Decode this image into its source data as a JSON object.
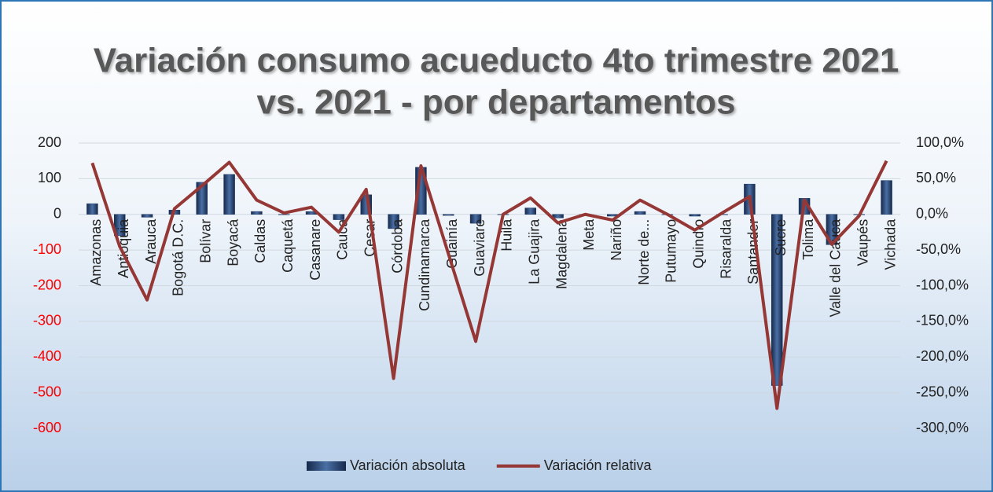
{
  "chart_data": {
    "type": "bar_line",
    "title": [
      "Variación consumo acueducto 4to trimestre 2021",
      "vs. 2021 - por departamentos"
    ],
    "categories": [
      "Amazonas",
      "Antioquia",
      "Arauca",
      "Bogotá D.C.",
      "Bolívar",
      "Boyacá",
      "Caldas",
      "Caquetá",
      "Casanare",
      "Cauca",
      "Cesar",
      "Córdoba",
      "Cundinamarca",
      "Guainía",
      "Guaviare",
      "Huila",
      "La Guajira",
      "Magdalena",
      "Meta",
      "Nariño",
      "Norte de...",
      "Putumayo",
      "Quindío",
      "Risaralda",
      "Santander",
      "Sucre",
      "Tolima",
      "Valle del Cauca",
      "Vaupés",
      "Vichada"
    ],
    "series": [
      {
        "name": "Variación absoluta",
        "type": "bar",
        "color": "#1f3864",
        "values": [
          30,
          -60,
          -8,
          12,
          90,
          112,
          8,
          0,
          8,
          -15,
          55,
          -40,
          132,
          -3,
          -25,
          0,
          18,
          -10,
          0,
          -5,
          8,
          0,
          -5,
          0,
          85,
          -480,
          45,
          -85,
          0,
          95
        ]
      },
      {
        "name": "Variación relativa",
        "type": "line",
        "axis": "y2",
        "color": "#953735",
        "values": [
          72,
          -45,
          -120,
          8,
          40,
          73,
          20,
          2,
          10,
          -25,
          35,
          -230,
          68,
          -55,
          -178,
          0,
          23,
          -12,
          0,
          -8,
          20,
          0,
          -22,
          2,
          25,
          -272,
          20,
          -42,
          -2,
          75
        ]
      }
    ],
    "ylim": [
      -600,
      200
    ],
    "yticks": [
      -600,
      -500,
      -400,
      -300,
      -200,
      -100,
      0,
      100,
      200
    ],
    "y2lim": [
      -300,
      100
    ],
    "y2ticks": [
      {
        "value": -300,
        "label": "-300,0%"
      },
      {
        "value": -250,
        "label": "-250,0%"
      },
      {
        "value": -200,
        "label": "-200,0%"
      },
      {
        "value": -150,
        "label": "-150,0%"
      },
      {
        "value": -100,
        "label": "-100,0%"
      },
      {
        "value": -50,
        "label": "-50,0%"
      },
      {
        "value": 0,
        "label": "0,0%"
      },
      {
        "value": 50,
        "label": "50,0%"
      },
      {
        "value": 100,
        "label": "100,0%"
      }
    ],
    "negative_tick_color": "#ff0000",
    "grid": true,
    "legend": "bottom"
  }
}
